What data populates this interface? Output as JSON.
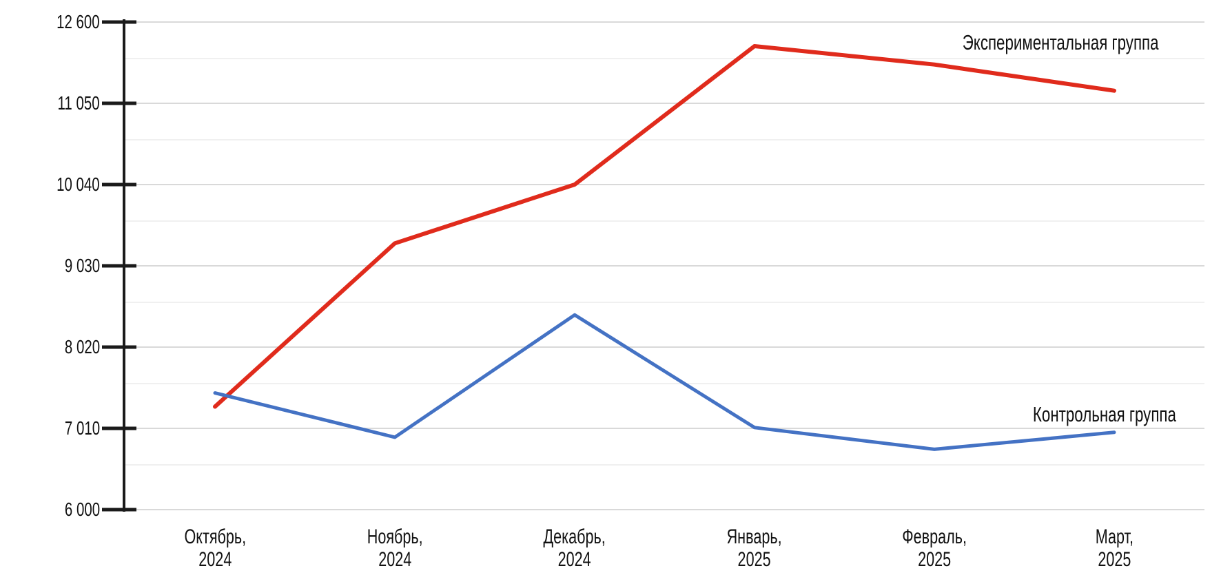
{
  "chart_data": {
    "type": "line",
    "title": "",
    "xlabel": "",
    "ylabel": "",
    "categories": [
      "Октябрь, 2024",
      "Ноябрь, 2024",
      "Декабрь, 2024",
      "Январь, 2025",
      "Февраль, 2025",
      "Март, 2025"
    ],
    "category_labels": [
      [
        "Октябрь,",
        "2024"
      ],
      [
        "Ноябрь,",
        "2024"
      ],
      [
        "Декабрь,",
        "2024"
      ],
      [
        "Январь,",
        "2025"
      ],
      [
        "Февраль,",
        "2025"
      ],
      [
        "Март,",
        "2025"
      ]
    ],
    "series": [
      {
        "name": "Экспериментальная группа",
        "color": "#e02b1c",
        "values": [
          7280,
          9310,
          10040,
          12140,
          11790,
          11290
        ]
      },
      {
        "name": "Контрольная группа",
        "color": "#4472c4",
        "values": [
          7450,
          6900,
          8420,
          7020,
          6750,
          6960
        ]
      }
    ],
    "y_ticks": [
      {
        "value": 6000,
        "label": "6 000"
      },
      {
        "value": 7010,
        "label": "7 010"
      },
      {
        "value": 8020,
        "label": "8 020"
      },
      {
        "value": 9030,
        "label": "9 030"
      },
      {
        "value": 10040,
        "label": "10 040"
      },
      {
        "value": 11050,
        "label": "11 050"
      },
      {
        "value": 12600,
        "label": "12 600"
      }
    ],
    "ylim": [
      6000,
      12600
    ],
    "grid": "horizontal major and minor",
    "legend_position": "inline-right-of-lines",
    "axis_color": "#1a1a1a",
    "gridline_major_color": "#d9d9d9",
    "gridline_minor_color": "#ececec",
    "background": "#ffffff"
  }
}
